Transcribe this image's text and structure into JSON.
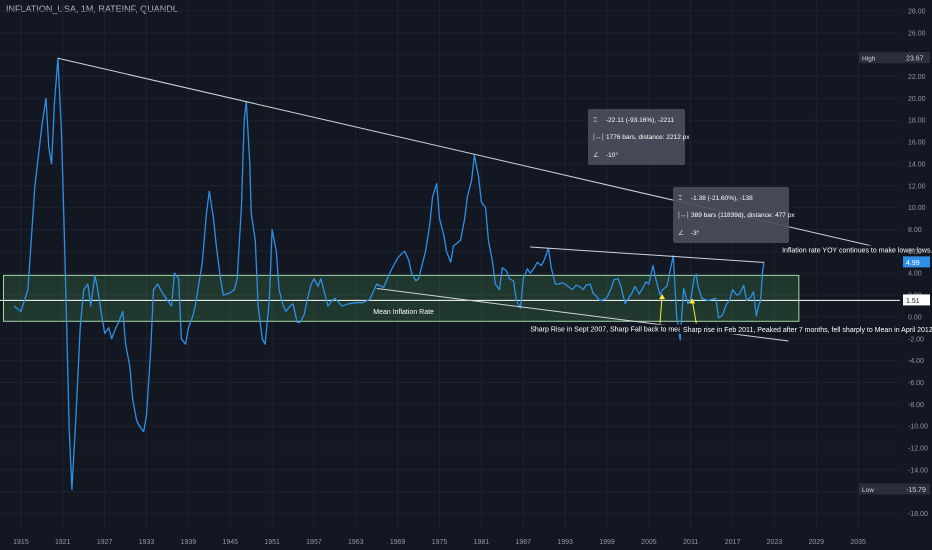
{
  "header": {
    "title": "INFLATION_USA, 1M, RATEINF, QUANDL"
  },
  "colors": {
    "background": "#131722",
    "series": "#2e8fe6",
    "band_fill": "#4caf50",
    "band_stroke": "#a5d6a7",
    "grid_text": "#9598a1",
    "trendline": "#d1d4dc",
    "annotation": "#ffeb3b"
  },
  "chart_data": {
    "type": "line",
    "title": "INFLATION_USA, 1M, RATEINF, QUANDL",
    "x_ticks": [
      "1915",
      "1921",
      "1927",
      "1933",
      "1939",
      "1945",
      "1951",
      "1957",
      "1963",
      "1969",
      "1975",
      "1981",
      "1987",
      "1993",
      "1999",
      "2005",
      "2011",
      "2017",
      "2023",
      "2029",
      "2035"
    ],
    "y_ticks": [
      28,
      26,
      24,
      22,
      20,
      18,
      16,
      14,
      12,
      10,
      8,
      6,
      4,
      2,
      0,
      -2,
      -4,
      -6,
      -8,
      -10,
      -12,
      -14,
      -16,
      -18
    ],
    "y_tick_labels": [
      "28.00",
      "26.00",
      "24.00",
      "22.00",
      "20.00",
      "18.00",
      "16.00",
      "14.00",
      "12.00",
      "10.00",
      "8.00",
      "6.00",
      "4.00",
      "2.00",
      "0.00",
      "-2.00",
      "-4.00",
      "-6.00",
      "-8.00",
      "-10.00",
      "-12.00",
      "-14.00",
      "-16.00",
      "-18.00"
    ],
    "xlim": [
      1912,
      2041
    ],
    "ylim": [
      -19.5,
      29
    ],
    "series": [
      {
        "values": [
          [
            1914,
            1.0
          ],
          [
            1915,
            0.5
          ],
          [
            1916,
            2.5
          ],
          [
            1917,
            12.0
          ],
          [
            1918,
            17.5
          ],
          [
            1918.6,
            20.0
          ],
          [
            1919,
            15.5
          ],
          [
            1919.4,
            14.0
          ],
          [
            1919.8,
            19.5
          ],
          [
            1920.3,
            23.67
          ],
          [
            1920.8,
            17.0
          ],
          [
            1921.2,
            8.0
          ],
          [
            1921.6,
            -2.0
          ],
          [
            1921.9,
            -10.0
          ],
          [
            1922.3,
            -15.79
          ],
          [
            1922.9,
            -9.0
          ],
          [
            1923.5,
            -1.0
          ],
          [
            1924,
            2.5
          ],
          [
            1924.6,
            3.0
          ],
          [
            1925,
            1.0
          ],
          [
            1925.6,
            3.8
          ],
          [
            1926,
            2.5
          ],
          [
            1926.6,
            0.0
          ],
          [
            1927,
            -1.5
          ],
          [
            1927.6,
            -1.0
          ],
          [
            1928,
            -2.0
          ],
          [
            1928.6,
            -1.0
          ],
          [
            1929,
            -0.5
          ],
          [
            1929.6,
            0.5
          ],
          [
            1930,
            -2.5
          ],
          [
            1930.6,
            -4.5
          ],
          [
            1931,
            -7.5
          ],
          [
            1931.6,
            -9.5
          ],
          [
            1932,
            -10.0
          ],
          [
            1932.6,
            -10.5
          ],
          [
            1933,
            -9.0
          ],
          [
            1933.6,
            -3.0
          ],
          [
            1934,
            2.5
          ],
          [
            1934.6,
            3.0
          ],
          [
            1935,
            2.5
          ],
          [
            1936,
            1.5
          ],
          [
            1936.6,
            1.0
          ],
          [
            1937,
            4.0
          ],
          [
            1937.6,
            3.5
          ],
          [
            1938,
            -2.0
          ],
          [
            1938.6,
            -2.5
          ],
          [
            1939,
            -1.0
          ],
          [
            1939.6,
            0.0
          ],
          [
            1940,
            1.0
          ],
          [
            1941,
            5.0
          ],
          [
            1941.6,
            9.5
          ],
          [
            1942,
            11.5
          ],
          [
            1942.6,
            9.0
          ],
          [
            1943,
            6.5
          ],
          [
            1943.6,
            3.5
          ],
          [
            1944,
            2.0
          ],
          [
            1945,
            2.2
          ],
          [
            1945.6,
            2.5
          ],
          [
            1946,
            3.5
          ],
          [
            1946.6,
            10.0
          ],
          [
            1947,
            18.0
          ],
          [
            1947.3,
            19.7
          ],
          [
            1947.8,
            14.0
          ],
          [
            1948,
            9.5
          ],
          [
            1948.6,
            7.0
          ],
          [
            1949,
            1.0
          ],
          [
            1949.6,
            -2.0
          ],
          [
            1950,
            -2.5
          ],
          [
            1950.6,
            1.5
          ],
          [
            1951,
            8.0
          ],
          [
            1951.6,
            6.0
          ],
          [
            1952,
            2.5
          ],
          [
            1952.6,
            1.0
          ],
          [
            1953,
            0.5
          ],
          [
            1953.6,
            1.0
          ],
          [
            1954,
            1.2
          ],
          [
            1954.6,
            -0.5
          ],
          [
            1955,
            -0.5
          ],
          [
            1955.6,
            0.2
          ],
          [
            1956,
            1.5
          ],
          [
            1956.6,
            3.0
          ],
          [
            1957,
            3.5
          ],
          [
            1957.6,
            2.8
          ],
          [
            1958,
            3.5
          ],
          [
            1958.6,
            2.0
          ],
          [
            1959,
            1.0
          ],
          [
            1959.6,
            1.5
          ],
          [
            1960,
            1.7
          ],
          [
            1961,
            1.0
          ],
          [
            1962,
            1.2
          ],
          [
            1963,
            1.3
          ],
          [
            1964,
            1.3
          ],
          [
            1965,
            1.6
          ],
          [
            1966,
            3.0
          ],
          [
            1967,
            2.7
          ],
          [
            1968,
            4.2
          ],
          [
            1969,
            5.4
          ],
          [
            1969.6,
            5.8
          ],
          [
            1970,
            6.0
          ],
          [
            1970.6,
            5.2
          ],
          [
            1971,
            4.0
          ],
          [
            1971.6,
            3.3
          ],
          [
            1972,
            3.5
          ],
          [
            1973,
            6.0
          ],
          [
            1973.6,
            8.5
          ],
          [
            1974,
            11.0
          ],
          [
            1974.6,
            12.2
          ],
          [
            1975,
            9.0
          ],
          [
            1975.6,
            7.5
          ],
          [
            1976,
            6.0
          ],
          [
            1976.6,
            5.0
          ],
          [
            1977,
            6.5
          ],
          [
            1977.6,
            6.8
          ],
          [
            1978,
            7.0
          ],
          [
            1978.6,
            9.0
          ],
          [
            1979,
            11.0
          ],
          [
            1979.6,
            12.5
          ],
          [
            1980,
            14.8
          ],
          [
            1980.6,
            12.8
          ],
          [
            1981,
            10.5
          ],
          [
            1981.6,
            10.0
          ],
          [
            1982,
            7.0
          ],
          [
            1982.6,
            5.0
          ],
          [
            1983,
            3.0
          ],
          [
            1983.6,
            2.5
          ],
          [
            1984,
            4.5
          ],
          [
            1984.6,
            4.2
          ],
          [
            1985,
            3.5
          ],
          [
            1985.6,
            3.3
          ],
          [
            1986,
            1.5
          ],
          [
            1986.6,
            0.8
          ],
          [
            1987,
            3.5
          ],
          [
            1987.6,
            4.4
          ],
          [
            1988,
            4.0
          ],
          [
            1988.6,
            4.5
          ],
          [
            1989,
            5.0
          ],
          [
            1989.6,
            4.7
          ],
          [
            1990,
            5.2
          ],
          [
            1990.6,
            6.3
          ],
          [
            1991,
            4.5
          ],
          [
            1991.6,
            3.0
          ],
          [
            1992,
            3.0
          ],
          [
            1992.6,
            3.1
          ],
          [
            1993,
            3.0
          ],
          [
            1993.6,
            2.7
          ],
          [
            1994,
            2.5
          ],
          [
            1994.6,
            2.9
          ],
          [
            1995,
            2.8
          ],
          [
            1995.6,
            2.5
          ],
          [
            1996,
            2.9
          ],
          [
            1996.6,
            3.0
          ],
          [
            1997,
            2.2
          ],
          [
            1997.6,
            1.8
          ],
          [
            1998,
            1.5
          ],
          [
            1998.6,
            1.6
          ],
          [
            1999,
            1.8
          ],
          [
            1999.6,
            2.6
          ],
          [
            2000,
            3.4
          ],
          [
            2000.6,
            3.5
          ],
          [
            2001,
            2.8
          ],
          [
            2001.6,
            1.2
          ],
          [
            2002,
            1.6
          ],
          [
            2002.6,
            2.2
          ],
          [
            2003,
            2.8
          ],
          [
            2003.6,
            2.1
          ],
          [
            2004,
            2.5
          ],
          [
            2004.6,
            3.2
          ],
          [
            2005,
            3.0
          ],
          [
            2005.6,
            4.7
          ],
          [
            2006,
            3.5
          ],
          [
            2006.6,
            2.0
          ],
          [
            2007,
            2.5
          ],
          [
            2007.6,
            2.8
          ],
          [
            2008,
            4.1
          ],
          [
            2008.5,
            5.6
          ],
          [
            2008.9,
            1.1
          ],
          [
            2009,
            0.0
          ],
          [
            2009.5,
            -2.1
          ],
          [
            2009.9,
            1.8
          ],
          [
            2010,
            2.6
          ],
          [
            2010.6,
            1.2
          ],
          [
            2011,
            1.6
          ],
          [
            2011.5,
            3.6
          ],
          [
            2011.8,
            3.9
          ],
          [
            2012,
            2.9
          ],
          [
            2012.3,
            2.3
          ],
          [
            2012.6,
            1.7
          ],
          [
            2013,
            1.6
          ],
          [
            2013.6,
            1.5
          ],
          [
            2014,
            1.6
          ],
          [
            2014.6,
            1.7
          ],
          [
            2015,
            -0.1
          ],
          [
            2015.6,
            0.2
          ],
          [
            2016,
            1.0
          ],
          [
            2016.6,
            1.6
          ],
          [
            2017,
            2.5
          ],
          [
            2017.6,
            2.0
          ],
          [
            2018,
            2.1
          ],
          [
            2018.6,
            2.9
          ],
          [
            2019,
            1.5
          ],
          [
            2019.6,
            1.8
          ],
          [
            2020,
            2.3
          ],
          [
            2020.4,
            0.1
          ],
          [
            2020.8,
            1.2
          ],
          [
            2021,
            1.4
          ],
          [
            2021.3,
            4.2
          ],
          [
            2021.5,
            4.99
          ]
        ]
      }
    ],
    "mean_inflation": 1.51,
    "mean_band": [
      -0.4,
      3.8
    ],
    "high": 23.67,
    "low": -15.79,
    "last": 4.99
  },
  "labels": {
    "high_tag": "High",
    "high_value": "23.67",
    "low_tag": "Low",
    "low_value": "-15.79",
    "last_value": "4.99",
    "mean_value": "1.51",
    "mean_label": "Mean Inflation Rate",
    "lower_lows_label": "Inflation rate YOY continues to make lower lows.",
    "note_2007": "Sharp Rise in Sept 2007, Sharp Fall back to mean in 12 months later.",
    "note_2011": "Sharp rise in Feb 2011, Peaked after 7 months, fell sharply to Mean in April 2012."
  },
  "measure_boxes": [
    {
      "line1": "-22.11 (-93.16%), -2211",
      "line2": "1776 bars, distance: 2212 px",
      "line3": "-10°"
    },
    {
      "line1": "-1.38 (-21.60%), -138",
      "line2": "389 bars (11839d), distance: 477 px",
      "line3": "-3°"
    }
  ]
}
